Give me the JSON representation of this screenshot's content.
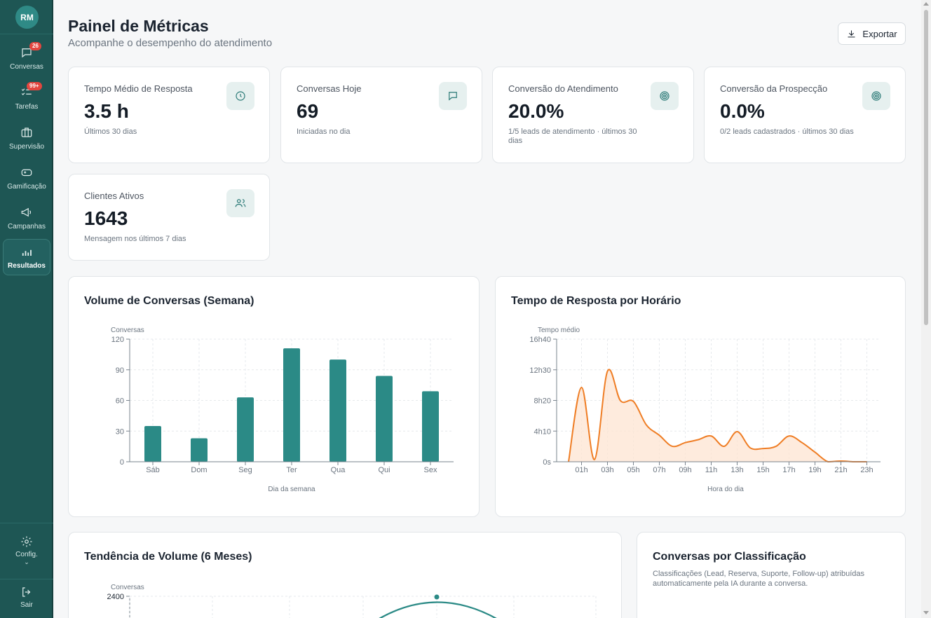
{
  "user": {
    "initials": "RM"
  },
  "nav": {
    "conversas": {
      "label": "Conversas",
      "badge": "26"
    },
    "tarefas": {
      "label": "Tarefas",
      "badge": "99+"
    },
    "supervisao": {
      "label": "Supervisão"
    },
    "gamificacao": {
      "label": "Gamificação"
    },
    "campanhas": {
      "label": "Campanhas"
    },
    "resultados": {
      "label": "Resultados"
    },
    "config": {
      "label": "Config."
    },
    "sair": {
      "label": "Sair"
    }
  },
  "header": {
    "title": "Painel de Métricas",
    "subtitle": "Acompanhe o desempenho do atendimento",
    "export_label": "Exportar"
  },
  "kpis": [
    {
      "label": "Tempo Médio de Resposta",
      "value": "3.5 h",
      "note": "Últimos 30 dias",
      "icon": "clock-icon"
    },
    {
      "label": "Conversas Hoje",
      "value": "69",
      "note": "Iniciadas no dia",
      "icon": "message-icon"
    },
    {
      "label": "Conversão do Atendimento",
      "value": "20.0%",
      "note": "1/5 leads de atendimento · últimos 30 dias",
      "icon": "target-icon"
    },
    {
      "label": "Conversão da Prospecção",
      "value": "0.0%",
      "note": "0/2 leads cadastrados · últimos 30 dias",
      "icon": "target-icon"
    },
    {
      "label": "Clientes Ativos",
      "value": "1643",
      "note": "Mensagem nos últimos 7 dias",
      "icon": "users-icon"
    }
  ],
  "colors": {
    "sidebar": "#1e5654",
    "teal": "#2b8a86",
    "orange": "#ef7d24"
  },
  "chart_data": [
    {
      "type": "bar",
      "title": "Volume de Conversas (Semana)",
      "xlabel": "Dia da semana",
      "ylabel": "Conversas",
      "categories": [
        "Sáb",
        "Dom",
        "Seg",
        "Ter",
        "Qua",
        "Qui",
        "Sex"
      ],
      "values": [
        35,
        23,
        63,
        111,
        100,
        84,
        69
      ],
      "ylim": [
        0,
        120
      ],
      "yticks": [
        "0",
        "30",
        "60",
        "90",
        "120"
      ],
      "grid": true,
      "color": "#2b8a86"
    },
    {
      "type": "area",
      "title": "Tempo de Resposta por Horário",
      "xlabel": "Hora do dia",
      "ylabel": "Tempo médio",
      "xticks": [
        "01h",
        "03h",
        "05h",
        "07h",
        "09h",
        "11h",
        "13h",
        "15h",
        "17h",
        "19h",
        "21h",
        "23h"
      ],
      "yticks": [
        "0s",
        "4h10",
        "8h20",
        "12h30",
        "16h40"
      ],
      "ylim_hours": [
        0,
        16.67
      ],
      "x_hours": [
        0,
        1,
        2,
        3,
        4,
        5,
        6,
        7,
        8,
        9,
        10,
        11,
        12,
        13,
        14,
        15,
        16,
        17,
        18,
        19,
        20,
        21,
        22,
        23
      ],
      "y_hours": [
        0,
        10.1,
        0.3,
        12.3,
        8.3,
        8.2,
        5,
        3.6,
        2.1,
        2.6,
        3,
        3.5,
        2.1,
        4.1,
        1.9,
        1.8,
        2.1,
        3.5,
        2.6,
        1.3,
        0,
        0.1,
        0,
        0
      ],
      "grid": true,
      "color": "#ef7d24"
    },
    {
      "type": "line",
      "title": "Tendência de Volume (6 Meses)",
      "ylabel": "Conversas",
      "yticks": [
        "2400"
      ],
      "ylim_top": 2400,
      "grid": true,
      "color": "#2b8a86"
    }
  ],
  "classification": {
    "title": "Conversas por Classificação",
    "description": "Classificações (Lead, Reserva, Suporte, Follow-up) atribuídas automaticamente pela IA durante a conversa."
  }
}
